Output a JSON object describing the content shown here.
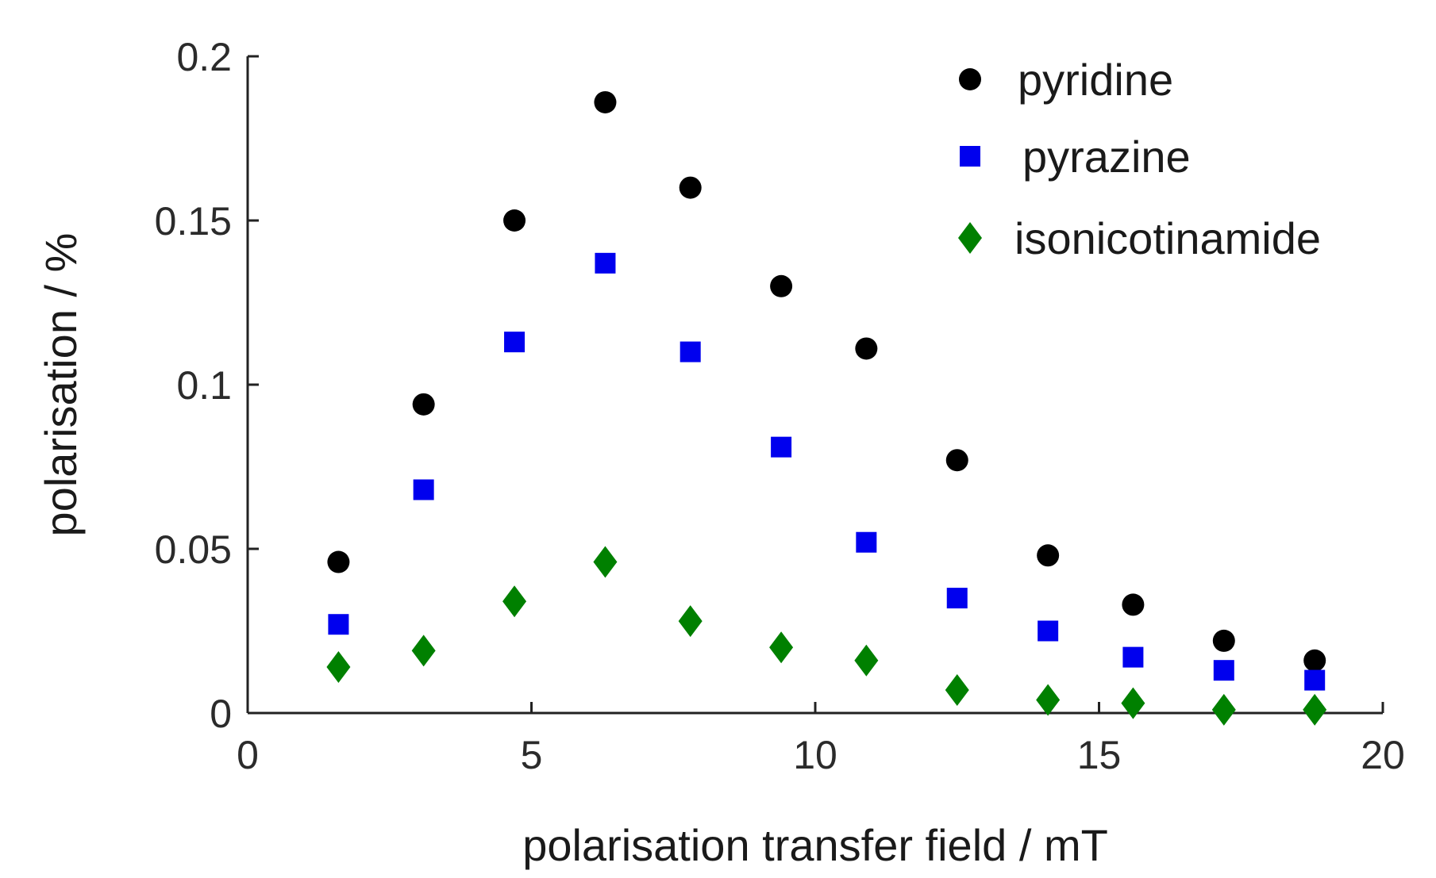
{
  "chart_data": {
    "type": "scatter",
    "xlabel": "polarisation transfer field / mT",
    "ylabel": "polarisation / %",
    "xlim": [
      0,
      20
    ],
    "ylim": [
      0,
      0.2
    ],
    "xticks": [
      0,
      5,
      10,
      15,
      20
    ],
    "xtick_labels": [
      "0",
      "5",
      "10",
      "15",
      "20"
    ],
    "yticks": [
      0,
      0.05,
      0.1,
      0.15,
      0.2
    ],
    "ytick_labels": [
      "0",
      "0.05",
      "0.1",
      "0.15",
      "0.2"
    ],
    "grid": false,
    "legend_position": "top-right",
    "x": [
      1.6,
      3.1,
      4.7,
      6.3,
      7.8,
      9.4,
      10.9,
      12.5,
      14.1,
      15.6,
      17.2,
      18.8
    ],
    "series": [
      {
        "name": "pyridine",
        "marker": "circle",
        "color": "#000000",
        "values": [
          0.046,
          0.094,
          0.15,
          0.186,
          0.16,
          0.13,
          0.111,
          0.077,
          0.048,
          0.033,
          0.022,
          0.016
        ]
      },
      {
        "name": "pyrazine",
        "marker": "square",
        "color": "#0000ee",
        "values": [
          0.027,
          0.068,
          0.113,
          0.137,
          0.11,
          0.081,
          0.052,
          0.035,
          0.025,
          0.017,
          0.013,
          0.01
        ]
      },
      {
        "name": "isonicotinamide",
        "marker": "diamond",
        "color": "#008000",
        "values": [
          0.014,
          0.019,
          0.034,
          0.046,
          0.028,
          0.02,
          0.016,
          0.007,
          0.004,
          0.003,
          0.001,
          0.001
        ]
      }
    ]
  }
}
